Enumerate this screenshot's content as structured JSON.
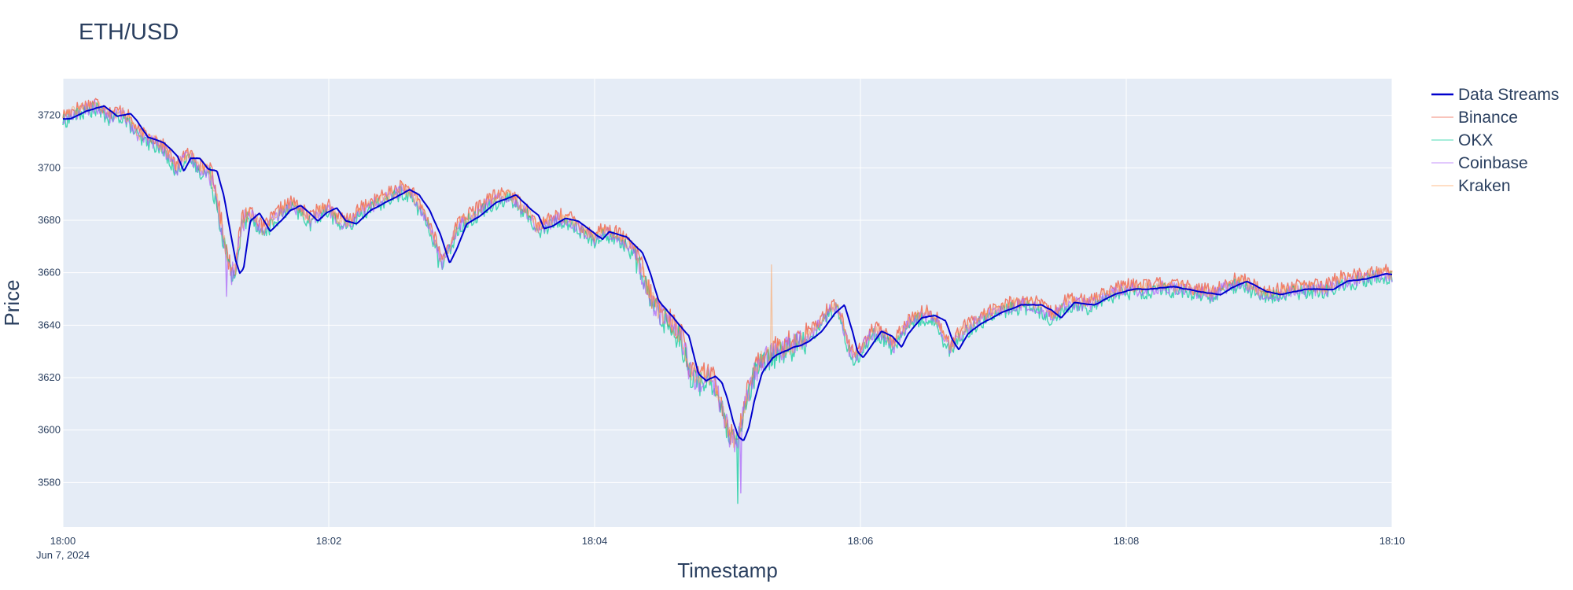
{
  "chart_data": {
    "type": "line",
    "title": "ETH/USD",
    "xlabel": "Timestamp",
    "ylabel": "Price",
    "x_range_minutes": [
      0,
      10
    ],
    "ylim": [
      3563,
      3734
    ],
    "y_ticks": [
      3580,
      3600,
      3620,
      3640,
      3660,
      3680,
      3700,
      3720
    ],
    "x_ticks": [
      {
        "min": 0,
        "label": "18:00",
        "sublabel": "Jun 7, 2024"
      },
      {
        "min": 2,
        "label": "18:02",
        "sublabel": ""
      },
      {
        "min": 4,
        "label": "18:04",
        "sublabel": ""
      },
      {
        "min": 6,
        "label": "18:06",
        "sublabel": ""
      },
      {
        "min": 8,
        "label": "18:08",
        "sublabel": ""
      },
      {
        "min": 10,
        "label": "18:10",
        "sublabel": ""
      }
    ],
    "grid": true,
    "legend_position": "top-right",
    "colors": {
      "plot_bg": "#e5ecf6",
      "grid": "#ffffff",
      "text": "#2a3f5f"
    },
    "base_path": [
      [
        0.0,
        3719
      ],
      [
        0.12,
        3722
      ],
      [
        0.25,
        3724
      ],
      [
        0.35,
        3720
      ],
      [
        0.45,
        3721
      ],
      [
        0.5,
        3718
      ],
      [
        0.58,
        3712
      ],
      [
        0.7,
        3710
      ],
      [
        0.8,
        3705
      ],
      [
        0.85,
        3699
      ],
      [
        0.9,
        3704
      ],
      [
        0.97,
        3704
      ],
      [
        1.03,
        3700
      ],
      [
        1.1,
        3699
      ],
      [
        1.15,
        3690
      ],
      [
        1.2,
        3676
      ],
      [
        1.24,
        3665
      ],
      [
        1.27,
        3660
      ],
      [
        1.3,
        3662
      ],
      [
        1.35,
        3680
      ],
      [
        1.42,
        3683
      ],
      [
        1.5,
        3676
      ],
      [
        1.58,
        3680
      ],
      [
        1.65,
        3684
      ],
      [
        1.73,
        3686
      ],
      [
        1.8,
        3683
      ],
      [
        1.86,
        3680
      ],
      [
        1.92,
        3683
      ],
      [
        2.0,
        3685
      ],
      [
        2.07,
        3680
      ],
      [
        2.15,
        3679
      ],
      [
        2.25,
        3684
      ],
      [
        2.4,
        3688
      ],
      [
        2.55,
        3692
      ],
      [
        2.62,
        3690
      ],
      [
        2.7,
        3684
      ],
      [
        2.78,
        3675
      ],
      [
        2.85,
        3664
      ],
      [
        2.9,
        3669
      ],
      [
        2.98,
        3679
      ],
      [
        3.08,
        3682
      ],
      [
        3.2,
        3687
      ],
      [
        3.35,
        3690
      ],
      [
        3.45,
        3685
      ],
      [
        3.52,
        3682
      ],
      [
        3.56,
        3677
      ],
      [
        3.62,
        3678
      ],
      [
        3.72,
        3681
      ],
      [
        3.82,
        3680
      ],
      [
        3.92,
        3676
      ],
      [
        4.0,
        3673
      ],
      [
        4.05,
        3676
      ],
      [
        4.18,
        3674
      ],
      [
        4.3,
        3668
      ],
      [
        4.36,
        3660
      ],
      [
        4.42,
        3650
      ],
      [
        4.48,
        3646
      ],
      [
        4.53,
        3643
      ],
      [
        4.58,
        3640
      ],
      [
        4.65,
        3636
      ],
      [
        4.72,
        3622
      ],
      [
        4.78,
        3619
      ],
      [
        4.85,
        3621
      ],
      [
        4.9,
        3618
      ],
      [
        4.94,
        3612
      ],
      [
        4.98,
        3604
      ],
      [
        5.02,
        3598
      ],
      [
        5.06,
        3596
      ],
      [
        5.1,
        3601
      ],
      [
        5.14,
        3611
      ],
      [
        5.2,
        3622
      ],
      [
        5.28,
        3628
      ],
      [
        5.35,
        3630
      ],
      [
        5.45,
        3632
      ],
      [
        5.55,
        3634
      ],
      [
        5.65,
        3638
      ],
      [
        5.75,
        3645
      ],
      [
        5.82,
        3648
      ],
      [
        5.88,
        3638
      ],
      [
        5.92,
        3630
      ],
      [
        5.96,
        3628
      ],
      [
        6.03,
        3633
      ],
      [
        6.1,
        3638
      ],
      [
        6.18,
        3636
      ],
      [
        6.25,
        3632
      ],
      [
        6.3,
        3637
      ],
      [
        6.4,
        3643
      ],
      [
        6.5,
        3644
      ],
      [
        6.58,
        3642
      ],
      [
        6.63,
        3635
      ],
      [
        6.68,
        3631
      ],
      [
        6.75,
        3637
      ],
      [
        6.85,
        3641
      ],
      [
        7.0,
        3645
      ],
      [
        7.15,
        3648
      ],
      [
        7.3,
        3648
      ],
      [
        7.38,
        3646
      ],
      [
        7.45,
        3643
      ],
      [
        7.55,
        3649
      ],
      [
        7.7,
        3648
      ],
      [
        7.85,
        3652
      ],
      [
        8.0,
        3654
      ],
      [
        8.1,
        3654
      ],
      [
        8.3,
        3655
      ],
      [
        8.5,
        3653
      ],
      [
        8.65,
        3652
      ],
      [
        8.75,
        3655
      ],
      [
        8.85,
        3657
      ],
      [
        9.0,
        3653
      ],
      [
        9.1,
        3652
      ],
      [
        9.3,
        3654
      ],
      [
        9.5,
        3654
      ],
      [
        9.6,
        3657
      ],
      [
        9.75,
        3658
      ],
      [
        9.9,
        3660
      ],
      [
        10.0,
        3659
      ]
    ],
    "series": [
      {
        "name": "Data Streams",
        "color": "#0000cd",
        "opacity": 1.0,
        "width": 2.0,
        "offset": -0.3,
        "jitter": 0.35,
        "lag": 0.06,
        "smooth": 5
      },
      {
        "name": "Binance",
        "color": "#ef553b",
        "opacity": 0.75,
        "width": 1.4,
        "offset": 1.2,
        "jitter": 2.6,
        "lag": 0.0,
        "smooth": 0
      },
      {
        "name": "OKX",
        "color": "#00cc96",
        "opacity": 0.7,
        "width": 1.4,
        "offset": -1.5,
        "jitter": 2.8,
        "lag": 0.0,
        "smooth": 0
      },
      {
        "name": "Coinbase",
        "color": "#ab63fa",
        "opacity": 0.7,
        "width": 1.4,
        "offset": -0.5,
        "jitter": 2.6,
        "lag": 0.0,
        "smooth": 0
      },
      {
        "name": "Kraken",
        "color": "#ffa15a",
        "opacity": 0.55,
        "width": 1.3,
        "offset": 0.3,
        "jitter": 2.2,
        "lag": 0.0,
        "smooth": 0
      }
    ],
    "spikes": [
      {
        "series": "Kraken",
        "min": 5.33,
        "value": 3663
      },
      {
        "series": "OKX",
        "min": 5.08,
        "value": 3572
      },
      {
        "series": "Coinbase",
        "min": 5.1,
        "value": 3576
      },
      {
        "series": "Coinbase",
        "min": 1.23,
        "value": 3651
      },
      {
        "series": "OKX",
        "min": 2.82,
        "value": 3662
      }
    ]
  }
}
